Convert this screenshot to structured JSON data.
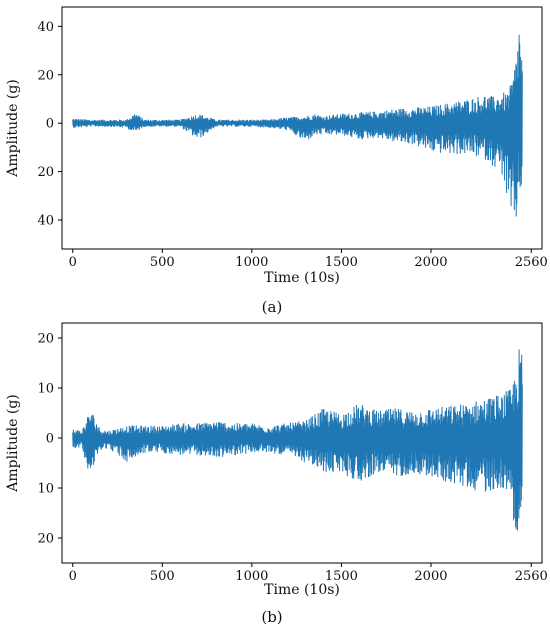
{
  "chart_data": [
    {
      "type": "line",
      "panel": "a",
      "caption": "(a)",
      "xlabel": "Time (10s)",
      "ylabel": "Amplitude (g)",
      "xlim": [
        -60,
        2620
      ],
      "ylim": [
        -52,
        48
      ],
      "xticks": [
        0,
        500,
        1000,
        1500,
        2000,
        2560
      ],
      "xtick_labels": [
        "0",
        "500",
        "1000",
        "1500",
        "2000",
        "2560"
      ],
      "yticks": [
        40,
        20,
        0,
        -20,
        -40
      ],
      "ytick_labels": [
        "40",
        "20",
        "0",
        "20",
        "40"
      ],
      "grid": false,
      "color": "#1f77b4",
      "series": [
        {
          "x": [
            0,
            100,
            200,
            300,
            350,
            400,
            500,
            600,
            700,
            800,
            900,
            1000,
            1100,
            1200,
            1300,
            1350,
            1400,
            1500,
            1600,
            1700,
            1800,
            1900,
            2000,
            2100,
            2200,
            2300,
            2350,
            2400,
            2420,
            2440,
            2460,
            2470,
            2480,
            2490,
            2500,
            2510
          ],
          "upper": [
            2,
            1.5,
            1.5,
            1.5,
            4.5,
            1.5,
            1.5,
            1.5,
            4,
            1.5,
            1.5,
            1.5,
            1.5,
            2.5,
            3,
            4,
            3,
            4,
            4.5,
            5,
            6,
            6.5,
            7,
            8.5,
            10,
            12,
            11,
            13,
            12,
            15,
            20,
            26,
            30,
            44,
            40,
            25
          ],
          "lower": [
            -2,
            -1.5,
            -1.5,
            -2,
            -4,
            -1.5,
            -1.5,
            -1.5,
            -7,
            -1.5,
            -1.5,
            -1.5,
            -2,
            -3,
            -8,
            -5,
            -5,
            -5,
            -7,
            -6,
            -8,
            -9,
            -12,
            -13,
            -13,
            -15,
            -18,
            -22,
            -30,
            -40,
            -48,
            -44,
            -40,
            -30,
            -35,
            -18
          ]
        }
      ]
    },
    {
      "type": "line",
      "panel": "b",
      "caption": "(b)",
      "xlabel": "Time (10s)",
      "ylabel": "Amplitude (g)",
      "xlim": [
        -60,
        2620
      ],
      "ylim": [
        -25,
        23
      ],
      "xticks": [
        0,
        500,
        1000,
        1500,
        2000,
        2560
      ],
      "xtick_labels": [
        "0",
        "500",
        "1000",
        "1500",
        "2000",
        "2560"
      ],
      "yticks": [
        20,
        10,
        0,
        -10,
        -20
      ],
      "ytick_labels": [
        "20",
        "10",
        "0",
        "10",
        "20"
      ],
      "grid": false,
      "color": "#1f77b4",
      "series": [
        {
          "x": [
            0,
            50,
            100,
            150,
            200,
            300,
            400,
            500,
            600,
            700,
            800,
            900,
            1000,
            1100,
            1200,
            1300,
            1400,
            1500,
            1600,
            1700,
            1800,
            1900,
            2000,
            2100,
            2200,
            2300,
            2400,
            2450,
            2480,
            2500,
            2510
          ],
          "upper": [
            2,
            1.5,
            6,
            2,
            1.5,
            2.5,
            2.5,
            2.5,
            3,
            3,
            3.5,
            3,
            3,
            2.5,
            3,
            3.5,
            6,
            5,
            7,
            5.5,
            6,
            5.5,
            6,
            6.5,
            7,
            8,
            9,
            10,
            15,
            20,
            16
          ],
          "lower": [
            -2,
            -2,
            -8,
            -2.5,
            -2,
            -5,
            -3,
            -3,
            -3.5,
            -3.5,
            -4,
            -3.5,
            -3,
            -3,
            -3.5,
            -5,
            -7,
            -7,
            -9,
            -7,
            -8,
            -7,
            -8,
            -9,
            -10,
            -11,
            -10,
            -13,
            -22,
            -19,
            -12
          ]
        }
      ]
    }
  ]
}
